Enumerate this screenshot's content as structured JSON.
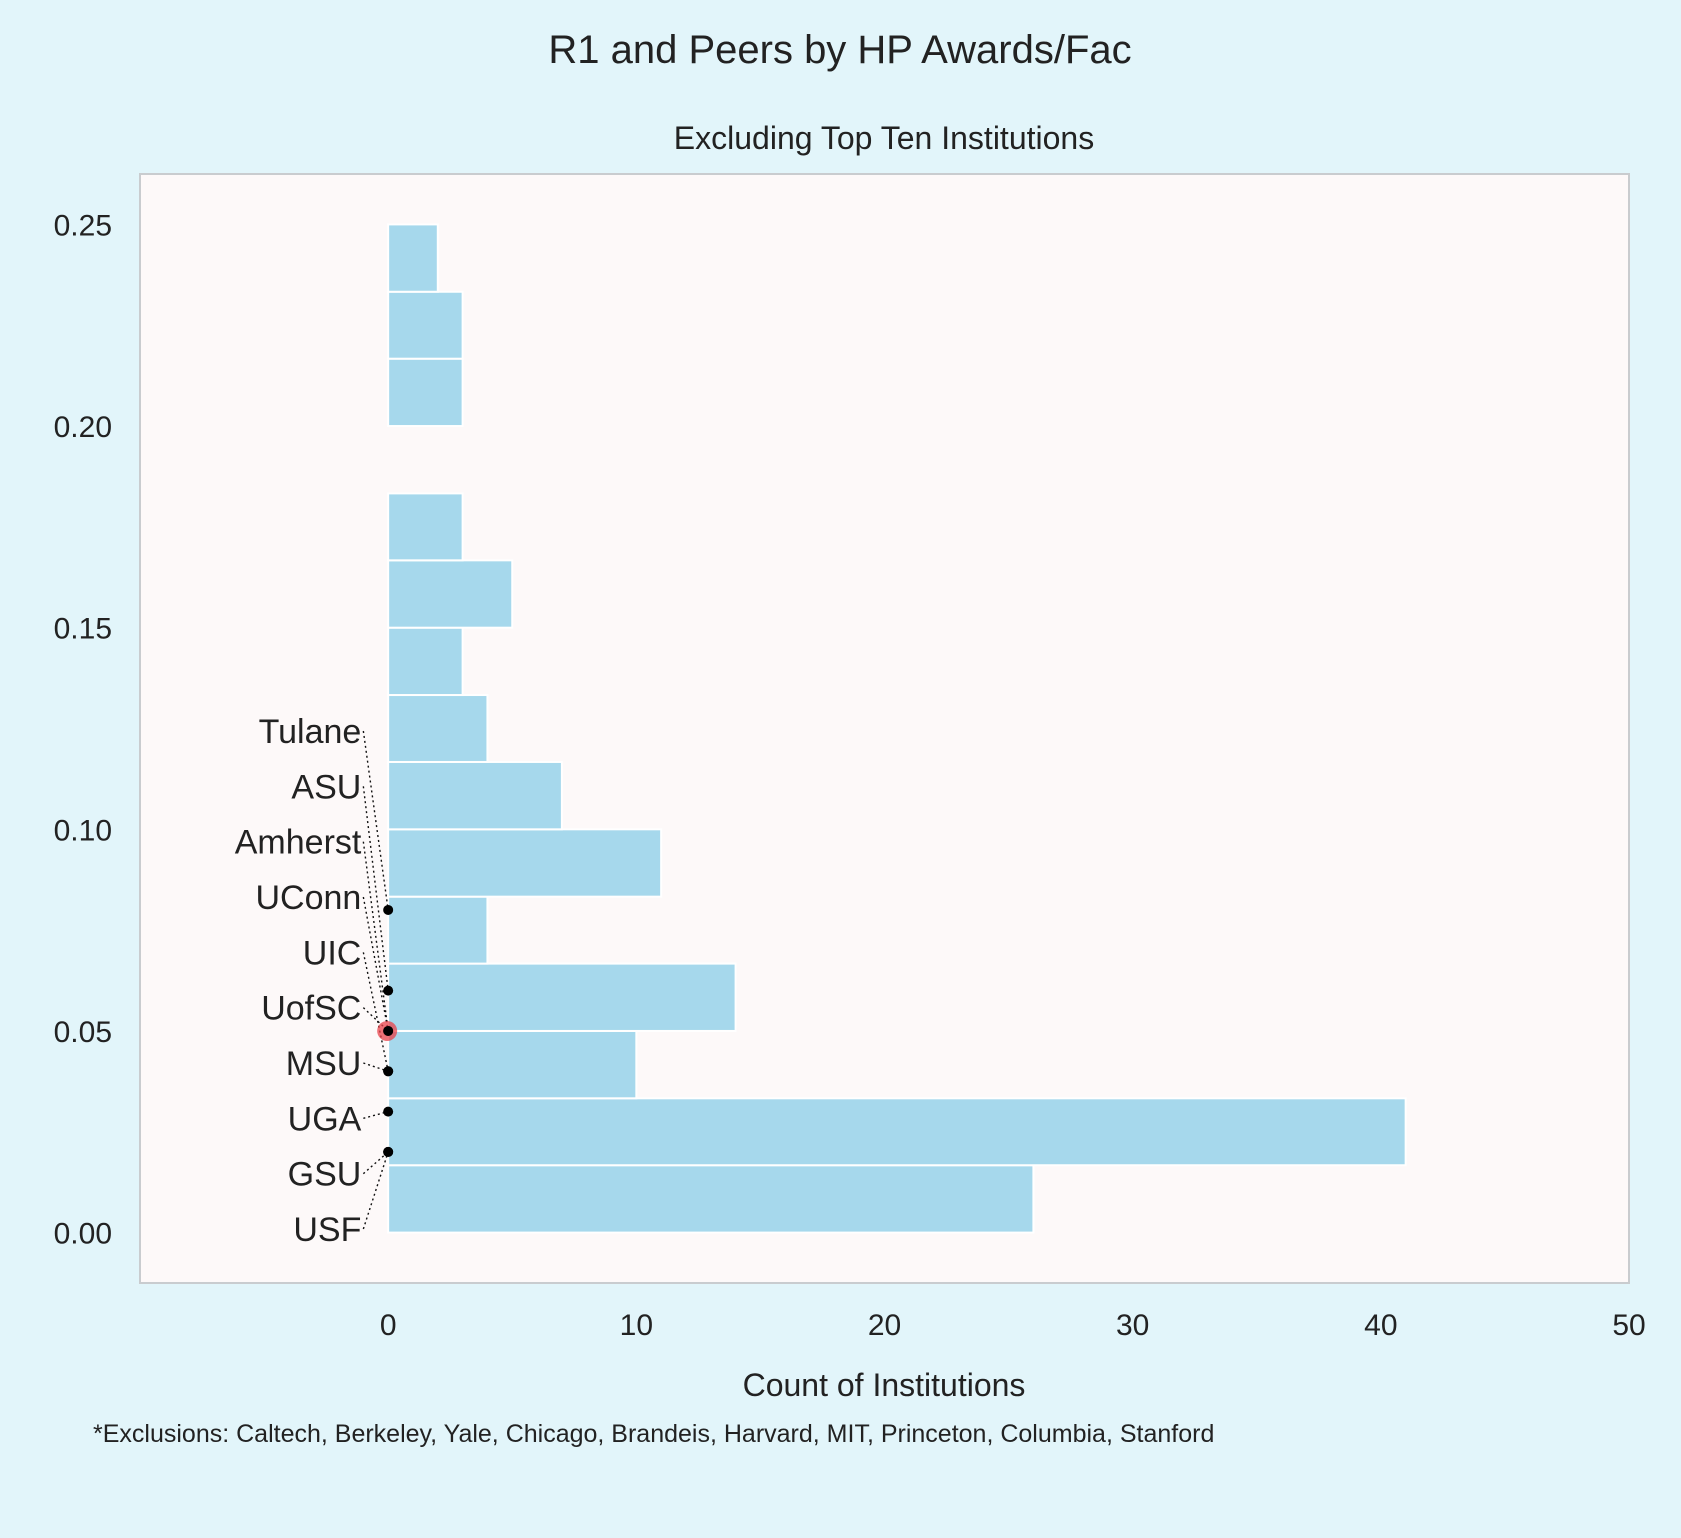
{
  "chart_data": {
    "type": "bar",
    "orientation": "horizontal",
    "title": "R1 and Peers by HP Awards/Fac",
    "subtitle": "Excluding Top Ten Institutions",
    "xlabel": "Count of Institutions",
    "ylabel": "",
    "xlim": [
      -10,
      50
    ],
    "ylim": [
      -0.0125,
      0.2625
    ],
    "xticks": [
      "0",
      "10",
      "20",
      "30",
      "40",
      "50"
    ],
    "yticks": [
      "0.00",
      "0.05",
      "0.10",
      "0.15",
      "0.20",
      "0.25"
    ],
    "grid": false,
    "colors": {
      "bar": "#a6d8ec",
      "bar_edge": "#ffffff",
      "figure_bg": "#e2f5fa",
      "plot_bg": "#fdf9f9",
      "highlight": "#e8414a",
      "point": "#000000"
    },
    "bins": [
      {
        "y0": 0.0,
        "y1": 0.0167,
        "count": 26
      },
      {
        "y0": 0.0167,
        "y1": 0.0333,
        "count": 41
      },
      {
        "y0": 0.0333,
        "y1": 0.05,
        "count": 10
      },
      {
        "y0": 0.05,
        "y1": 0.0667,
        "count": 14
      },
      {
        "y0": 0.0667,
        "y1": 0.0833,
        "count": 4
      },
      {
        "y0": 0.0833,
        "y1": 0.1,
        "count": 11
      },
      {
        "y0": 0.1,
        "y1": 0.1167,
        "count": 7
      },
      {
        "y0": 0.1167,
        "y1": 0.1333,
        "count": 4
      },
      {
        "y0": 0.1333,
        "y1": 0.15,
        "count": 3
      },
      {
        "y0": 0.15,
        "y1": 0.1667,
        "count": 5
      },
      {
        "y0": 0.1667,
        "y1": 0.1833,
        "count": 3
      },
      {
        "y0": 0.1833,
        "y1": 0.2,
        "count": 0
      },
      {
        "y0": 0.2,
        "y1": 0.2167,
        "count": 3
      },
      {
        "y0": 0.2167,
        "y1": 0.2333,
        "count": 3
      },
      {
        "y0": 0.2333,
        "y1": 0.25,
        "count": 2
      }
    ],
    "annotations": [
      {
        "label": "Tulane",
        "value": 0.08
      },
      {
        "label": "ASU",
        "value": 0.06
      },
      {
        "label": "Amherst",
        "value": 0.05
      },
      {
        "label": "UConn",
        "value": 0.05
      },
      {
        "label": "UIC",
        "value": 0.04
      },
      {
        "label": "UofSC",
        "value": 0.05,
        "highlight": true
      },
      {
        "label": "MSU",
        "value": 0.04
      },
      {
        "label": "UGA",
        "value": 0.03
      },
      {
        "label": "GSU",
        "value": 0.02
      },
      {
        "label": "USF",
        "value": 0.02
      }
    ]
  },
  "footnote": "*Exclusions: Caltech, Berkeley, Yale, Chicago, Brandeis, Harvard, MIT, Princeton, Columbia, Stanford"
}
